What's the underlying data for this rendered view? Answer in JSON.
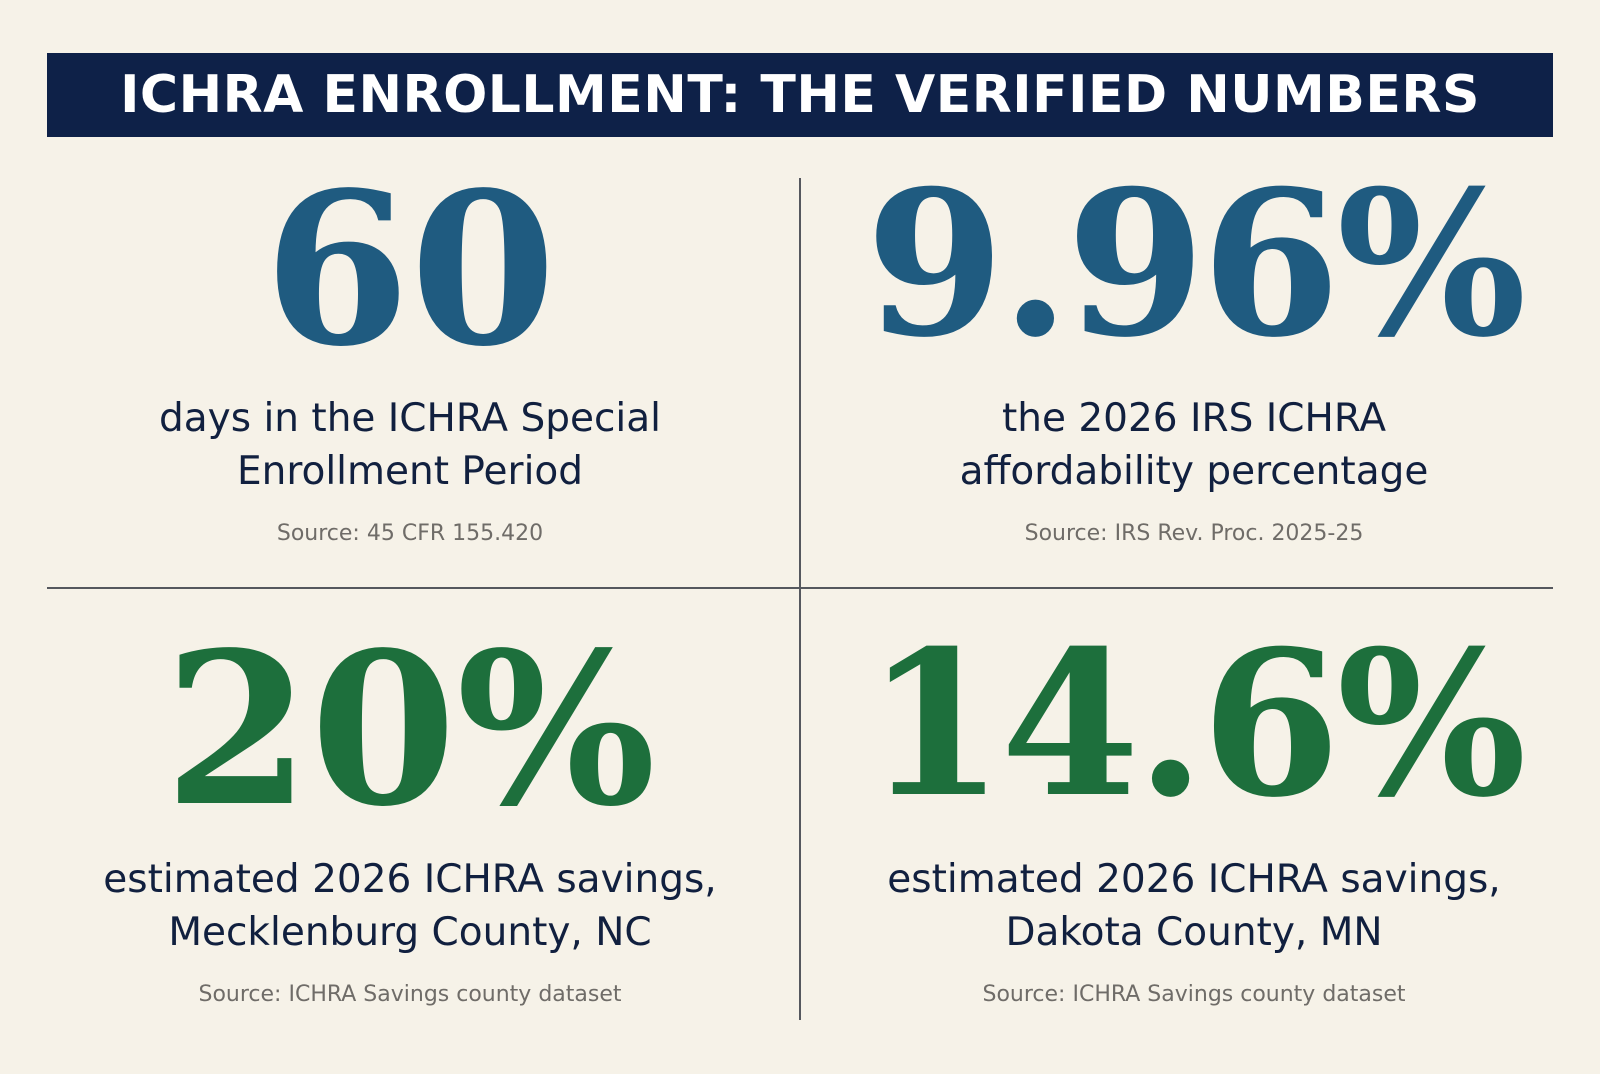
{
  "header": {
    "title": "ICHRA ENROLLMENT: THE VERIFIED NUMBERS"
  },
  "stats": [
    {
      "value": "60",
      "line1": "days in the ICHRA Special",
      "line2": "Enrollment Period",
      "source": "Source: 45 CFR 155.420",
      "color": "#1f5b80"
    },
    {
      "value": "9.96%",
      "line1": "the 2026 IRS ICHRA",
      "line2": "affordability percentage",
      "source": "Source: IRS Rev. Proc. 2025-25",
      "color": "#1f5b80"
    },
    {
      "value": "20%",
      "line1": "estimated 2026 ICHRA savings,",
      "line2": "Mecklenburg County, NC",
      "source": "Source: ICHRA Savings county dataset",
      "color": "#1d6f3c"
    },
    {
      "value": "14.6%",
      "line1": "estimated 2026 ICHRA savings,",
      "line2": "Dakota County, MN",
      "source": "Source: ICHRA Savings county dataset",
      "color": "#1d6f3c"
    }
  ],
  "colors": {
    "background": "#f6f2e8",
    "banner": "#0e2148",
    "text_dark": "#11203f",
    "source_gray": "#6f6c68",
    "divider": "#55585e"
  }
}
